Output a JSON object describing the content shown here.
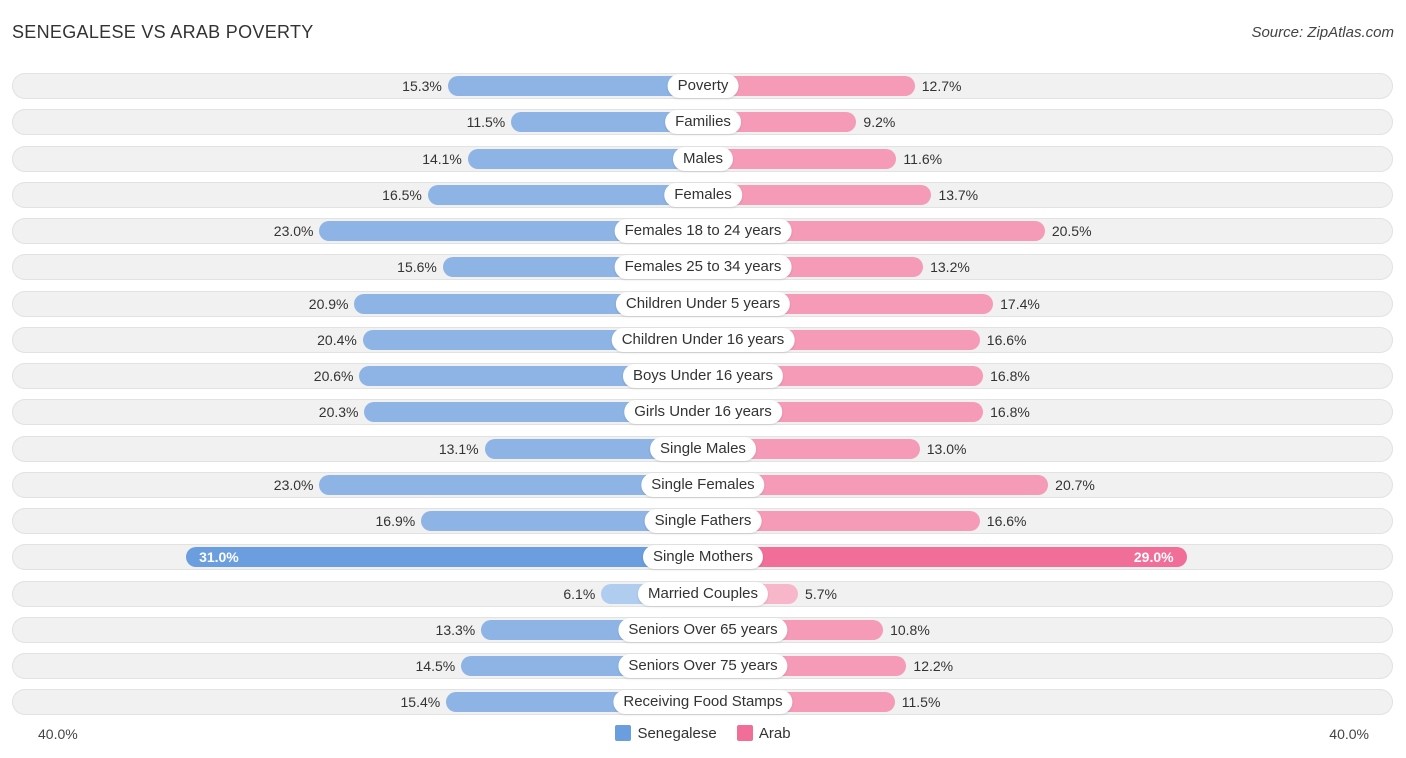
{
  "title": "SENEGALESE VS ARAB POVERTY",
  "source": "Source: ZipAtlas.com",
  "axis": {
    "left_label": "40.0%",
    "right_label": "40.0%",
    "max": 40
  },
  "legend": [
    {
      "name": "Senegalese",
      "color": "#6a9ede"
    },
    {
      "name": "Arab",
      "color": "#f06e98"
    }
  ],
  "chart_data": {
    "type": "bar",
    "orientation": "diverging-horizontal",
    "title": "SENEGALESE VS ARAB POVERTY",
    "xlim": [
      -40,
      40
    ],
    "categories": [
      "Poverty",
      "Families",
      "Males",
      "Females",
      "Females 18 to 24 years",
      "Females 25 to 34 years",
      "Children Under 5 years",
      "Children Under 16 years",
      "Boys Under 16 years",
      "Girls Under 16 years",
      "Single Males",
      "Single Females",
      "Single Fathers",
      "Single Mothers",
      "Married Couples",
      "Seniors Over 65 years",
      "Seniors Over 75 years",
      "Receiving Food Stamps"
    ],
    "series": [
      {
        "name": "Senegalese",
        "values": [
          15.3,
          11.5,
          14.1,
          16.5,
          23.0,
          15.6,
          20.9,
          20.4,
          20.6,
          20.3,
          13.1,
          23.0,
          16.9,
          31.0,
          6.1,
          13.3,
          14.5,
          15.4
        ]
      },
      {
        "name": "Arab",
        "values": [
          12.7,
          9.2,
          11.6,
          13.7,
          20.5,
          13.2,
          17.4,
          16.6,
          16.8,
          16.8,
          13.0,
          20.7,
          16.6,
          29.0,
          5.7,
          10.8,
          12.2,
          11.5
        ]
      }
    ],
    "value_labels": {
      "Senegalese": [
        "15.3%",
        "11.5%",
        "14.1%",
        "16.5%",
        "23.0%",
        "15.6%",
        "20.9%",
        "20.4%",
        "20.6%",
        "20.3%",
        "13.1%",
        "23.0%",
        "16.9%",
        "31.0%",
        "6.1%",
        "13.3%",
        "14.5%",
        "15.4%"
      ],
      "Arab": [
        "12.7%",
        "9.2%",
        "11.6%",
        "13.7%",
        "20.5%",
        "13.2%",
        "17.4%",
        "16.6%",
        "16.8%",
        "16.8%",
        "13.0%",
        "20.7%",
        "16.6%",
        "29.0%",
        "5.7%",
        "10.8%",
        "12.2%",
        "11.5%"
      ]
    }
  }
}
